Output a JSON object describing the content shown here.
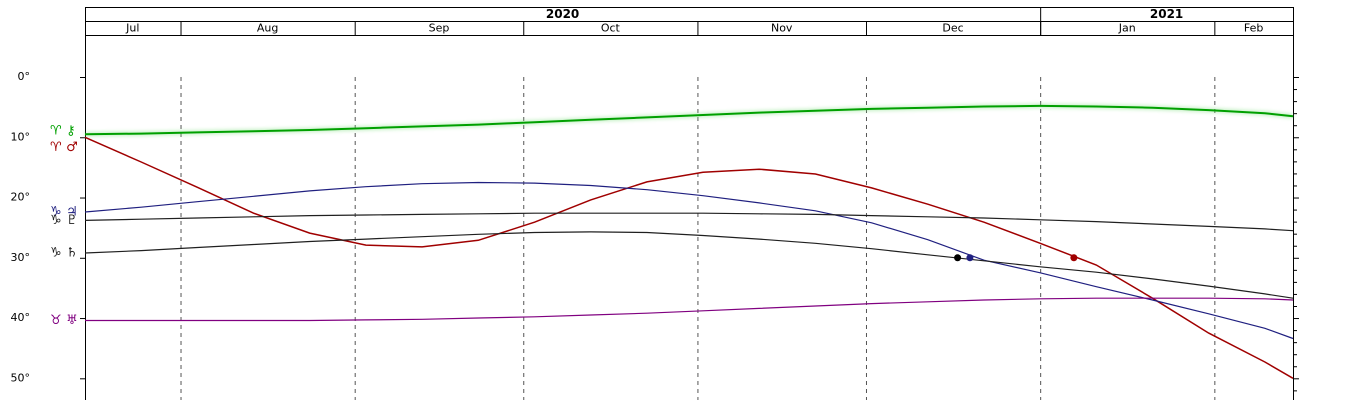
{
  "chart_data": {
    "type": "line",
    "years": [
      {
        "value": 0,
        "label": "2020"
      },
      {
        "value": 170,
        "label": "2021"
      }
    ],
    "xticks": [
      {
        "value": 0,
        "label": "Jul"
      },
      {
        "value": 17,
        "label": "Aug"
      },
      {
        "value": 48,
        "label": "Sep"
      },
      {
        "value": 78,
        "label": "Oct"
      },
      {
        "value": 109,
        "label": "Nov"
      },
      {
        "value": 139,
        "label": "Dec"
      },
      {
        "value": 170,
        "label": "Jan"
      },
      {
        "value": 201,
        "label": "Feb"
      }
    ],
    "xlim": [
      0,
      215
    ],
    "ylim": [
      0,
      53.6
    ],
    "yticks": [
      {
        "value": 0,
        "label": "0°"
      },
      {
        "value": 10,
        "label": "10°"
      },
      {
        "value": 20,
        "label": "20°"
      },
      {
        "value": 30,
        "label": "30°"
      },
      {
        "value": 40,
        "label": "40°"
      },
      {
        "value": 50,
        "label": "50°"
      }
    ],
    "y_minor_ticks": [
      2,
      4,
      6,
      8,
      12,
      14,
      16,
      18,
      22,
      24,
      26,
      28,
      32,
      34,
      36,
      38,
      42,
      44,
      46,
      48,
      52
    ],
    "y_inverted": true,
    "x": [
      0,
      10,
      20,
      30,
      40,
      50,
      60,
      70,
      80,
      90,
      100,
      110,
      120,
      130,
      140,
      150,
      160,
      170,
      180,
      190,
      200,
      210,
      215
    ],
    "series": [
      {
        "name": "♈ ⚷",
        "color": "#00a000",
        "values": [
          9.5,
          9.4,
          9.2,
          9.0,
          8.8,
          8.5,
          8.2,
          7.9,
          7.5,
          7.1,
          6.7,
          6.3,
          5.9,
          5.6,
          5.3,
          5.1,
          4.9,
          4.8,
          4.9,
          5.1,
          5.5,
          6.0,
          6.5
        ]
      },
      {
        "name": "♈ ♂",
        "color": "#a00000",
        "values": [
          10,
          14.1,
          18.3,
          22.6,
          25.9,
          27.9,
          28.2,
          27.1,
          24.1,
          20.4,
          17.4,
          15.8,
          15.3,
          16.1,
          18.4,
          21.1,
          24.1,
          27.6,
          31.2,
          36.7,
          42.5,
          47.3,
          50
        ]
      },
      {
        "name": "♑ ♃",
        "color": "#202080",
        "values": [
          22.4,
          21.6,
          20.7,
          19.8,
          18.9,
          18.2,
          17.7,
          17.5,
          17.6,
          18.0,
          18.7,
          19.7,
          20.9,
          22.2,
          24.2,
          27.0,
          30.4,
          32.5,
          34.8,
          37.0,
          39.3,
          41.7,
          43.4
        ]
      },
      {
        "name": "♑ ♇",
        "color": "#202020",
        "values": [
          23.8,
          23.6,
          23.4,
          23.2,
          23.0,
          22.9,
          22.8,
          22.7,
          22.6,
          22.6,
          22.6,
          22.6,
          22.7,
          22.8,
          23.0,
          23.2,
          23.4,
          23.7,
          24.0,
          24.4,
          24.8,
          25.2,
          25.5
        ]
      },
      {
        "name": "♑ ♄",
        "color": "#202020",
        "values": [
          29.2,
          28.8,
          28.3,
          27.8,
          27.3,
          26.9,
          26.5,
          26.1,
          25.8,
          25.7,
          25.8,
          26.3,
          26.9,
          27.6,
          28.5,
          29.5,
          30.5,
          31.5,
          32.4,
          33.5,
          34.7,
          36.0,
          36.7
        ]
      },
      {
        "name": "♉ ♅",
        "color": "#800080",
        "values": [
          40.4,
          40.4,
          40.4,
          40.4,
          40.4,
          40.3,
          40.2,
          40.0,
          39.8,
          39.5,
          39.2,
          38.8,
          38.4,
          38.0,
          37.6,
          37.3,
          37.0,
          36.8,
          36.7,
          36.7,
          36.7,
          36.8,
          37.0
        ]
      }
    ],
    "points": [
      {
        "x": 155.3,
        "y": 30,
        "color": "#000000"
      },
      {
        "x": 157.5,
        "y": 30,
        "color": "#202080"
      },
      {
        "x": 176,
        "y": 30,
        "color": "#a00000"
      }
    ]
  }
}
